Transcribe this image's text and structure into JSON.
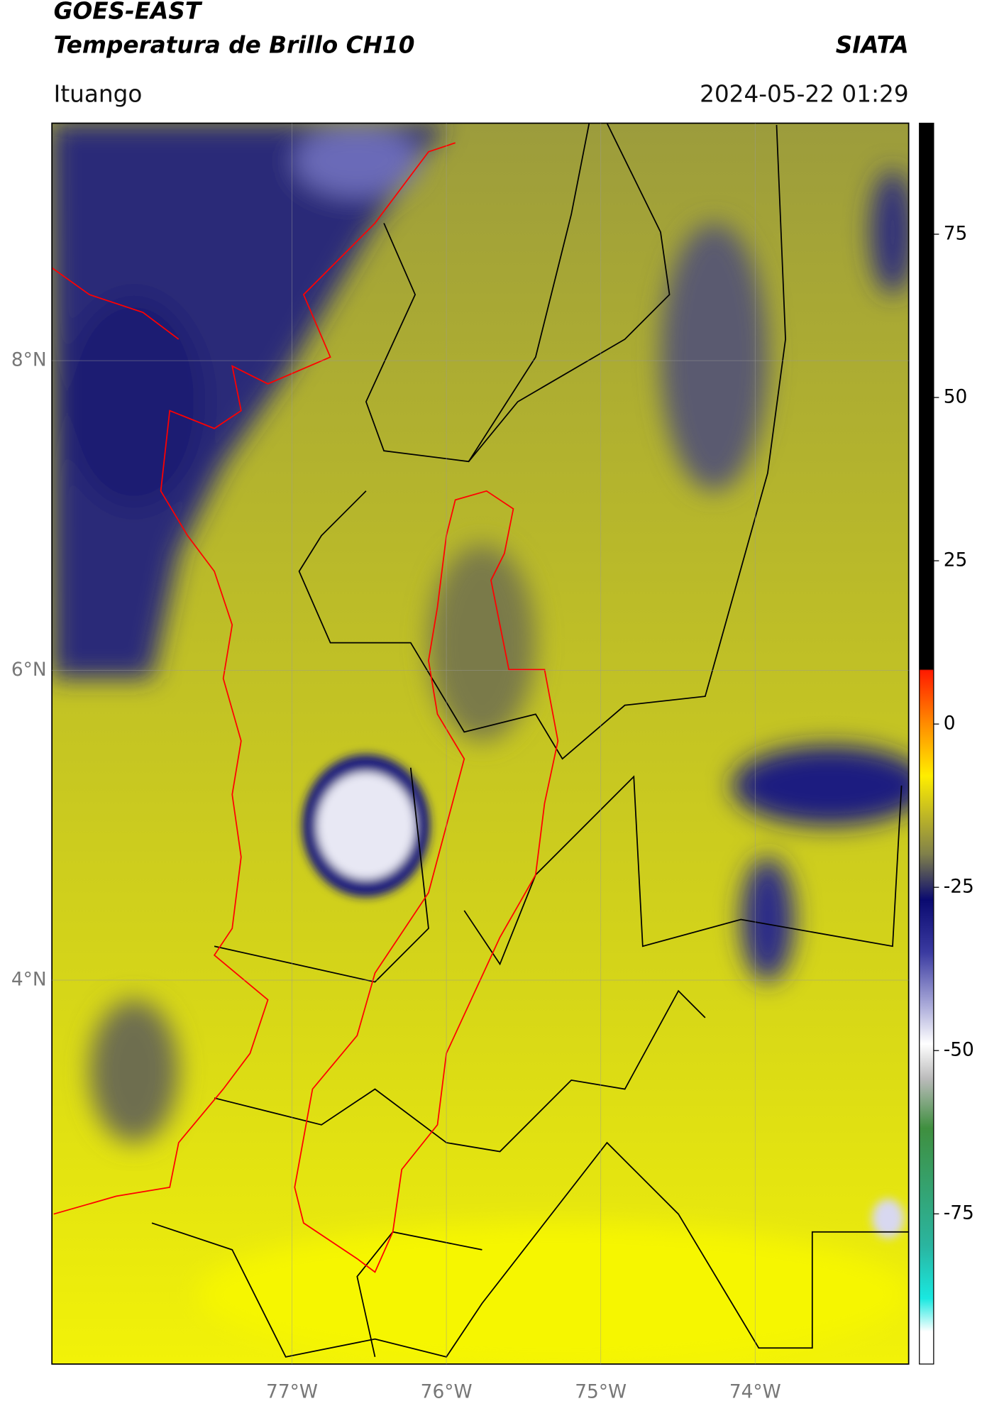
{
  "header": {
    "title": "GOES-EAST",
    "subtitle": "Temperatura de Brillo CH10",
    "brand": "SIATA",
    "location": "Ituango",
    "datetime": "2024-05-22 01:29"
  },
  "map": {
    "lat_ticks": [
      {
        "value": 8,
        "label": "8°N"
      },
      {
        "value": 6,
        "label": "6°N"
      },
      {
        "value": 4,
        "label": "4°N"
      }
    ],
    "lon_ticks": [
      {
        "value": -77,
        "label": "77°W"
      },
      {
        "value": -76,
        "label": "76°W"
      },
      {
        "value": -75,
        "label": "75°W"
      },
      {
        "value": -74,
        "label": "74°W"
      }
    ],
    "colorbar": {
      "clim": [
        -98,
        92
      ],
      "ticks": [
        75,
        50,
        25,
        0,
        -25,
        -50,
        -75
      ]
    }
  }
}
